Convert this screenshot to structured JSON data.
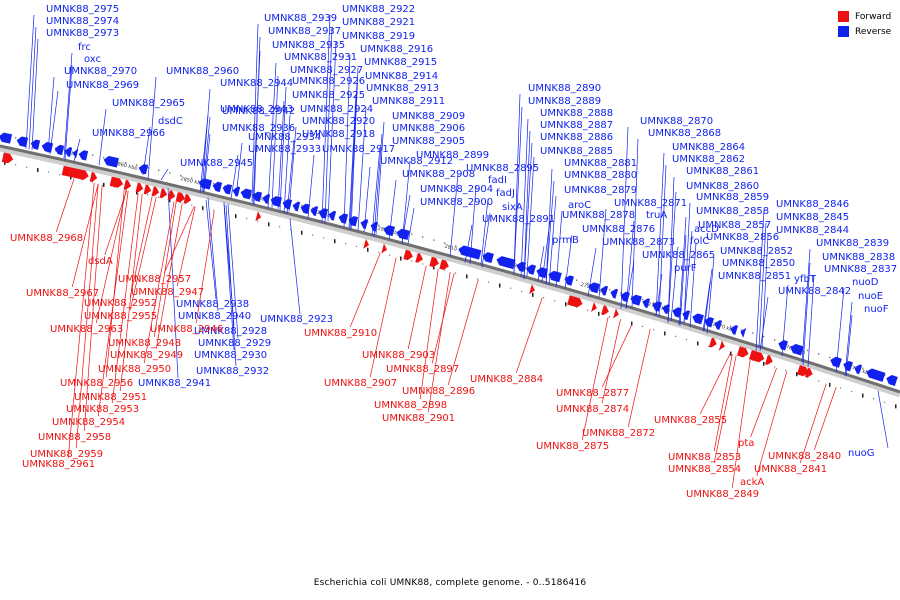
{
  "caption": "Escherichia coli UMNK88, complete genome. - 0..5186416",
  "legend": [
    {
      "label": "Forward",
      "color": "#ff0000"
    },
    {
      "label": "Reverse",
      "color": "#0000ff"
    }
  ],
  "colors": {
    "forward": "#ee1111",
    "reverse": "#1122ee",
    "backbone": "#6a6a6a"
  },
  "scale_ticks": [
    "2870 kbp",
    "2860 kbp",
    "2850 kbp",
    "2840 kbp",
    "2830 kbp",
    "2820 kbp",
    "2810 kbp",
    "2800 kbp",
    "2790 kbp",
    "2780 kbp",
    "2770 kbp",
    "2760 kbp",
    "2750 kbp"
  ],
  "reverse_labels": [
    "UMNK88_2975",
    "UMNK88_2974",
    "UMNK88_2973",
    "frc",
    "oxc",
    "UMNK88_2970",
    "UMNK88_2969",
    "UMNK88_2965",
    "UMNK88_2966",
    "UMNK88_2960",
    "dsdC",
    "UMNK88_2939",
    "UMNK88_2922",
    "UMNK88_2921",
    "UMNK88_2937",
    "UMNK88_2919",
    "UMNK88_2935",
    "UMNK88_2916",
    "UMNK88_2931",
    "UMNK88_2915",
    "UMNK88_2927",
    "UMNK88_2944",
    "UMNK88_2914",
    "UMNK88_2926",
    "UMNK88_2943",
    "UMNK88_2913",
    "UMNK88_2925",
    "UMNK88_2911",
    "UMNK88_2942",
    "UMNK88_2924",
    "UMNK88_2909",
    "UMNK88_2920",
    "UMNK88_2936",
    "UMNK88_2906",
    "UMNK88_2918",
    "UMNK88_2934",
    "UMNK88_2905",
    "UMNK88_2933",
    "UMNK88_2917",
    "UMNK88_2899",
    "UMNK88_2945",
    "UMNK88_2912",
    "UMNK88_2895",
    "UMNK88_2908",
    "fadI",
    "UMNK88_2904",
    "fadJ",
    "UMNK88_2900",
    "sixA",
    "UMNK88_2891",
    "UMNK88_2890",
    "UMNK88_2889",
    "UMNK88_2888",
    "UMNK88_2887",
    "UMNK88_2886",
    "UMNK88_2885",
    "UMNK88_2881",
    "UMNK88_2880",
    "UMNK88_2879",
    "aroC",
    "UMNK88_2878",
    "UMNK88_2876",
    "prmB",
    "UMNK88_2873",
    "UMNK88_2870",
    "UMNK88_2868",
    "UMNK88_2864",
    "UMNK88_2862",
    "UMNK88_2861",
    "UMNK88_2860",
    "UMNK88_2871",
    "UMNK88_2859",
    "truA",
    "UMNK88_2858",
    "accD",
    "UMNK88_2857",
    "folC",
    "UMNK88_2856",
    "UMNK88_2865",
    "UMNK88_2852",
    "purF",
    "UMNK88_2850",
    "UMNK88_2851",
    "yfbT",
    "UMNK88_2846",
    "UMNK88_2845",
    "UMNK88_2844",
    "UMNK88_2839",
    "UMNK88_2838",
    "UMNK88_2837",
    "nuoD",
    "nuoE",
    "nuoF",
    "UMNK88_2842",
    "UMNK88_2938",
    "UMNK88_2940",
    "UMNK88_2928",
    "UMNK88_2929",
    "UMNK88_2930",
    "UMNK88_2932",
    "UMNK88_2941",
    "UMNK88_2923",
    "nuoG"
  ],
  "forward_labels": [
    "UMNK88_2968",
    "dsdA",
    "UMNK88_2967",
    "UMNK88_2957",
    "UMNK88_2947",
    "UMNK88_2952",
    "UMNK88_2955",
    "UMNK88_2963",
    "UMNK88_2946",
    "UMNK88_2948",
    "UMNK88_2949",
    "UMNK88_2950",
    "UMNK88_2956",
    "UMNK88_2951",
    "UMNK88_2953",
    "UMNK88_2954",
    "UMNK88_2958",
    "UMNK88_2959",
    "UMNK88_2961",
    "UMNK88_2910",
    "UMNK88_2903",
    "UMNK88_2897",
    "UMNK88_2907",
    "UMNK88_2896",
    "UMNK88_2898",
    "UMNK88_2901",
    "UMNK88_2884",
    "UMNK88_2877",
    "UMNK88_2874",
    "UMNK88_2872",
    "UMNK88_2875",
    "UMNK88_2855",
    "UMNK88_2853",
    "UMNK88_2854",
    "pta",
    "ackA",
    "UMNK88_2849",
    "UMNK88_2840",
    "UMNK88_2841"
  ]
}
